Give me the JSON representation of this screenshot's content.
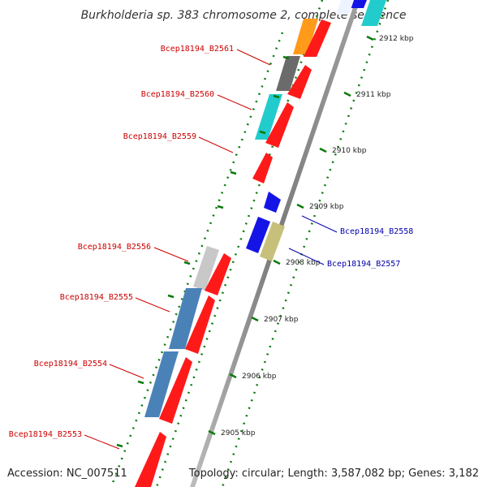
{
  "title": "Burkholderia sp. 383 chromosome 2, complete sequence",
  "accession_text": "Accession: NC_007511",
  "footer_text": "Topology: circular; Length: 3,587,082 bp; Genes: 3,182",
  "ticks": [
    {
      "label": "2912 kbp"
    },
    {
      "label": "2911 kbp"
    },
    {
      "label": "2910 kbp"
    },
    {
      "label": "2909 kbp"
    },
    {
      "label": "2908 kbp"
    },
    {
      "label": "2907 kbp"
    },
    {
      "label": "2906 kbp"
    },
    {
      "label": "2905 kbp"
    }
  ],
  "gene_labels": [
    {
      "text": "Bcep18194_B2561",
      "strand": "minus"
    },
    {
      "text": "Bcep18194_B2560",
      "strand": "minus"
    },
    {
      "text": "Bcep18194_B2559",
      "strand": "minus"
    },
    {
      "text": "Bcep18194_B2558",
      "strand": "plus"
    },
    {
      "text": "Bcep18194_B2557",
      "strand": "plus"
    },
    {
      "text": "Bcep18194_B2556",
      "strand": "minus"
    },
    {
      "text": "Bcep18194_B2555",
      "strand": "minus"
    },
    {
      "text": "Bcep18194_B2554",
      "strand": "minus"
    },
    {
      "text": "Bcep18194_B2553",
      "strand": "minus"
    }
  ],
  "colors": {
    "backbone": "#8c8c8c",
    "cds_red": "#ff1a1a",
    "gene_plus_blue": "#1414e6",
    "label_minus": "#cc0000",
    "label_plus": "#0000aa",
    "tick_green": "#0a7a0a",
    "cog_orange": "#ff9a1a",
    "cog_darkgray": "#6b6b6b",
    "cog_cyan": "#22cccc",
    "cog_steelblue": "#4a82b8",
    "cog_lightgray": "#c8c8c8",
    "cog_khaki": "#c7c07a"
  }
}
